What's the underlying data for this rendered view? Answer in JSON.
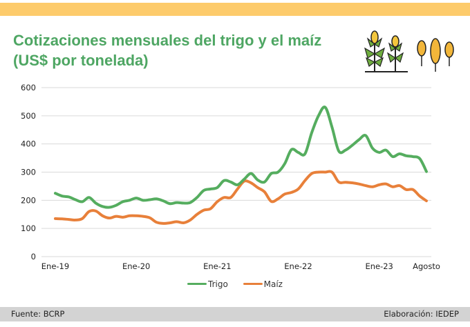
{
  "header": {
    "title_line1": "Cotizaciones mensuales del trigo y el maíz",
    "title_line2": "(US$ por tonelada)",
    "icons": [
      "corn-plant-icon",
      "wheat-icon"
    ]
  },
  "footer": {
    "source": "Fuente:  BCRP",
    "credit": "Elaboración: IEDEP"
  },
  "colors": {
    "band": "#fdcb6b",
    "title": "#4ea663",
    "trigo": "#55ad5f",
    "maiz": "#e8803a",
    "footer": "#d3d3d3"
  },
  "chart_data": {
    "type": "line",
    "title": "Cotizaciones mensuales del trigo y el maíz (US$ por tonelada)",
    "xlabel": "",
    "ylabel": "US$ por tonelada",
    "ylim": [
      0,
      600
    ],
    "yticks": [
      0,
      100,
      200,
      300,
      400,
      500,
      600
    ],
    "grid": true,
    "legend_position": "bottom-center",
    "x_start": "Ene-19",
    "x_end": "Agosto 2023",
    "xtick_labels": [
      {
        "label": "Ene-19",
        "index": 0
      },
      {
        "label": "Ene-20",
        "index": 12
      },
      {
        "label": "Ene-21",
        "index": 24
      },
      {
        "label": "Ene-22",
        "index": 36
      },
      {
        "label": "Ene-23",
        "index": 48
      },
      {
        "label": "Agosto",
        "index": 55
      }
    ],
    "series": [
      {
        "name": "Trigo",
        "color": "#55ad5f",
        "values": [
          225,
          215,
          212,
          202,
          195,
          210,
          190,
          178,
          175,
          182,
          195,
          200,
          208,
          200,
          202,
          205,
          198,
          188,
          192,
          190,
          192,
          210,
          235,
          240,
          245,
          270,
          265,
          255,
          275,
          295,
          272,
          265,
          295,
          300,
          330,
          380,
          370,
          365,
          440,
          500,
          530,
          460,
          375,
          378,
          395,
          415,
          430,
          385,
          370,
          378,
          355,
          365,
          358,
          355,
          348,
          302
        ]
      },
      {
        "name": "Maíz",
        "color": "#e8803a",
        "values": [
          135,
          134,
          132,
          130,
          135,
          160,
          162,
          145,
          137,
          143,
          140,
          145,
          145,
          143,
          138,
          122,
          118,
          120,
          124,
          120,
          130,
          150,
          165,
          170,
          195,
          210,
          210,
          240,
          268,
          262,
          245,
          230,
          196,
          205,
          222,
          228,
          240,
          270,
          295,
          300,
          300,
          300,
          265,
          264,
          262,
          258,
          252,
          248,
          255,
          258,
          248,
          252,
          238,
          238,
          215,
          198
        ]
      }
    ]
  }
}
